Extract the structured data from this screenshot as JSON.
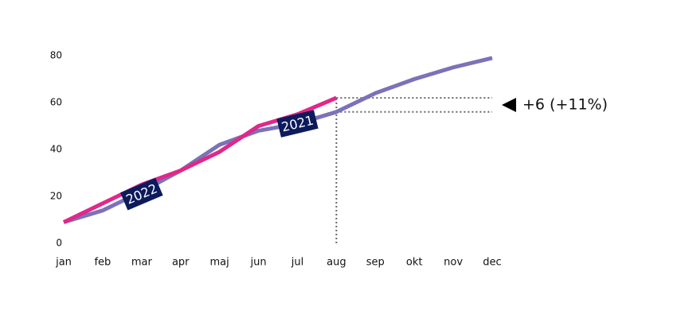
{
  "chart_data": {
    "type": "line",
    "categories": [
      "jan",
      "feb",
      "mar",
      "apr",
      "maj",
      "jun",
      "jul",
      "aug",
      "sep",
      "okt",
      "nov",
      "dec"
    ],
    "series": [
      {
        "name": "2022",
        "color": "#e0288a",
        "values": [
          9,
          17,
          25,
          31,
          39,
          50,
          55,
          62,
          null,
          null,
          null,
          null
        ]
      },
      {
        "name": "2021",
        "color": "#7b72b8",
        "values": [
          9,
          14,
          22,
          31,
          42,
          48,
          51,
          56,
          64,
          70,
          75,
          79
        ]
      }
    ],
    "ylim": [
      0,
      80
    ],
    "yticks": [
      0,
      20,
      40,
      60,
      80
    ],
    "grid": false,
    "label_color": "#0d1b5c",
    "annotation": "+6 (+11%)"
  }
}
